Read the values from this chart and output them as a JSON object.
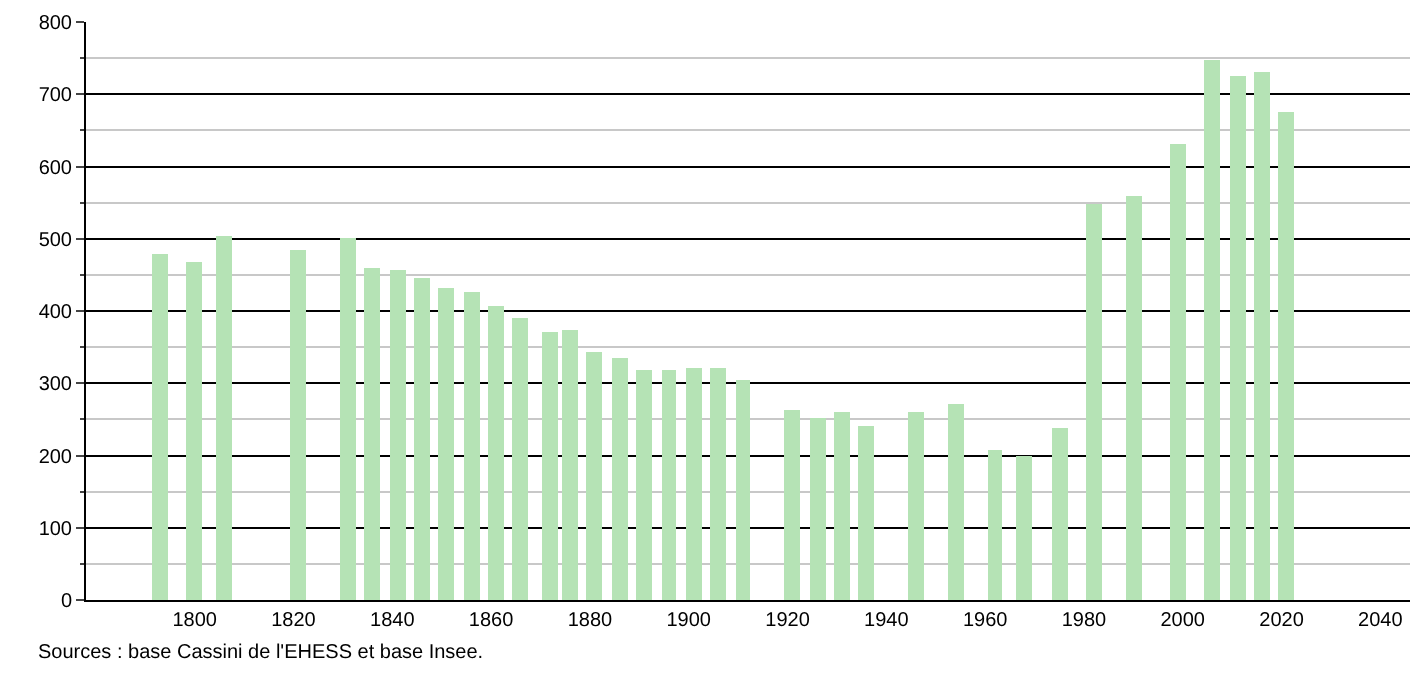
{
  "chart_data": {
    "type": "bar",
    "x": [
      1793,
      1800,
      1806,
      1821,
      1831,
      1836,
      1841,
      1846,
      1851,
      1856,
      1861,
      1866,
      1872,
      1876,
      1881,
      1886,
      1891,
      1896,
      1901,
      1906,
      1911,
      1921,
      1926,
      1931,
      1936,
      1946,
      1954,
      1962,
      1968,
      1975,
      1982,
      1990,
      1999,
      2006,
      2011,
      2016,
      2021
    ],
    "values": [
      480,
      468,
      505,
      485,
      500,
      460,
      457,
      447,
      433,
      427,
      407,
      390,
      372,
      373,
      342,
      336,
      317,
      317,
      322,
      322,
      305,
      263,
      253,
      260,
      240,
      260,
      272,
      208,
      198,
      238,
      548,
      558,
      632,
      748,
      725,
      730,
      676
    ],
    "color": "#b5e3b5",
    "xlim": [
      1778,
      2046
    ],
    "xticks": [
      1800,
      1820,
      1840,
      1860,
      1880,
      1900,
      1920,
      1940,
      1960,
      1980,
      2000,
      2020,
      2040
    ],
    "ylim": [
      0,
      800
    ],
    "yticks": [
      0,
      100,
      200,
      300,
      400,
      500,
      600,
      700,
      800
    ],
    "grid": "y",
    "annotations": [
      "Sources : base Cassini de l'EHESS et base Insee."
    ]
  }
}
